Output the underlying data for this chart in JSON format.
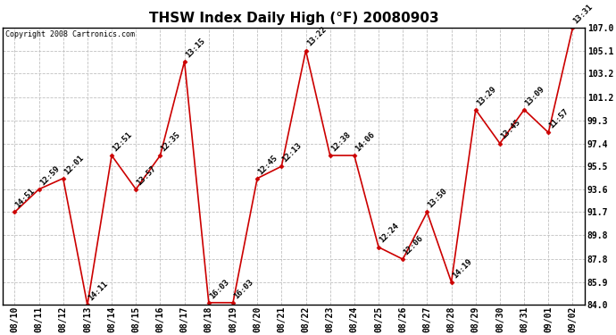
{
  "title": "THSW Index Daily High (°F) 20080903",
  "copyright": "Copyright 2008 Cartronics.com",
  "dates": [
    "08/10",
    "08/11",
    "08/12",
    "08/13",
    "08/14",
    "08/15",
    "08/16",
    "08/17",
    "08/18",
    "08/19",
    "08/20",
    "08/21",
    "08/22",
    "08/23",
    "08/24",
    "08/25",
    "08/26",
    "08/27",
    "08/28",
    "08/29",
    "08/30",
    "08/31",
    "09/01",
    "09/02"
  ],
  "values": [
    91.7,
    93.6,
    94.5,
    84.0,
    96.4,
    93.6,
    96.4,
    104.2,
    84.2,
    84.2,
    94.5,
    95.5,
    105.1,
    96.4,
    96.4,
    88.8,
    87.8,
    91.7,
    85.9,
    100.2,
    97.4,
    100.2,
    98.3,
    107.0
  ],
  "time_labels": [
    "14:51",
    "12:59",
    "12:01",
    "14:11",
    "12:51",
    "13:57",
    "12:35",
    "13:15",
    "16:03",
    "16:03",
    "12:45",
    "12:13",
    "13:22",
    "12:38",
    "14:06",
    "12:24",
    "12:06",
    "13:50",
    "14:19",
    "13:29",
    "13:45",
    "13:09",
    "11:57",
    "13:31"
  ],
  "ylim": [
    84.0,
    107.0
  ],
  "yticks": [
    84.0,
    85.9,
    87.8,
    89.8,
    91.7,
    93.6,
    95.5,
    97.4,
    99.3,
    101.2,
    103.2,
    105.1,
    107.0
  ],
  "line_color": "#cc0000",
  "marker_color": "#cc0000",
  "bg_color": "#ffffff",
  "grid_color": "#c0c0c0",
  "title_fontsize": 11,
  "label_fontsize": 6.5,
  "tick_fontsize": 7,
  "copyright_fontsize": 6
}
